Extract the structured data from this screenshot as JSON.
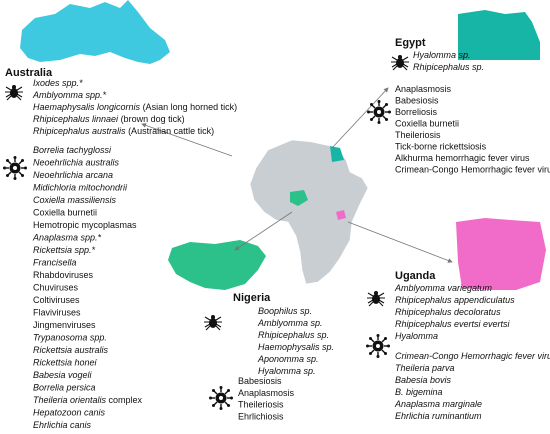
{
  "regions": [
    {
      "title": "Australia",
      "ticks": [
        [
          {
            "italic": "Ixodes spp.*"
          }
        ],
        [
          {
            "italic": "Amblyomma spp.*"
          }
        ],
        [
          {
            "italic": "Haemaphysalis longicornis"
          },
          {
            "regular": " (Asian long horned tick)"
          }
        ],
        [
          {
            "italic": "Rhipicephalus linnaei"
          },
          {
            "regular": " (brown dog tick)"
          }
        ],
        [
          {
            "italic": "Rhipicephalus australis"
          },
          {
            "regular": " (Australian cattle tick)"
          }
        ]
      ],
      "pathogens": [
        [
          {
            "italic": "Borrelia tachyglossi"
          }
        ],
        [
          {
            "italic": "Neoehrlichia australis"
          }
        ],
        [
          {
            "italic": "Neoehrlichia arcana"
          }
        ],
        [
          {
            "italic": "Midichloria mitochondrii"
          }
        ],
        [
          {
            "italic": "Coxiella massiliensis"
          }
        ],
        [
          {
            "regular": "Coxiella burnetii"
          }
        ],
        [
          {
            "regular": "Hemotropic mycoplasmas"
          }
        ],
        [
          {
            "italic": "Anaplasma spp.*"
          }
        ],
        [
          {
            "italic": "Rickettsia spp.*"
          }
        ],
        [
          {
            "italic": "Francisella"
          }
        ],
        [
          {
            "regular": "Rhabdoviruses"
          }
        ],
        [
          {
            "regular": "Chuviruses"
          }
        ],
        [
          {
            "regular": "Coltiviruses"
          }
        ],
        [
          {
            "regular": "Flaviviruses"
          }
        ],
        [
          {
            "regular": "Jingmenviruses"
          }
        ],
        [
          {
            "italic": "Trypanosoma spp."
          }
        ],
        [
          {
            "italic": "Rickettsia australis"
          }
        ],
        [
          {
            "italic": "Rickettsia honei"
          }
        ],
        [
          {
            "italic": "Babesia vogeli"
          }
        ],
        [
          {
            "italic": "Borrelia persica"
          }
        ],
        [
          {
            "italic": "Theileria orientalis"
          },
          {
            "regular": " complex"
          }
        ],
        [
          {
            "italic": "Hepatozoon canis"
          }
        ],
        [
          {
            "italic": "Ehrlichia canis"
          }
        ]
      ]
    },
    {
      "title": "Egypt",
      "ticks": [
        [
          {
            "italic": "Hyalomma sp."
          }
        ],
        [
          {
            "italic": "Rhipicephalus sp."
          }
        ]
      ],
      "pathogens": [
        [
          {
            "regular": "Anaplasmosis"
          }
        ],
        [
          {
            "regular": "Babesiosis"
          }
        ],
        [
          {
            "regular": "Borreliosis"
          }
        ],
        [
          {
            "regular": "Coxiella burnetii"
          }
        ],
        [
          {
            "regular": "Theileriosis"
          }
        ],
        [
          {
            "regular": "Tick-borne rickettsiosis"
          }
        ],
        [
          {
            "regular": "Alkhurma hemorrhagic fever virus"
          }
        ],
        [
          {
            "regular": "Crimean-Congo Hemorrhagic fever virus"
          }
        ]
      ]
    },
    {
      "title": "Nigeria",
      "ticks": [
        [
          {
            "italic": "Boophilus sp."
          }
        ],
        [
          {
            "italic": "Amblyomma sp."
          }
        ],
        [
          {
            "italic": "Rhipicephalus sp."
          }
        ],
        [
          {
            "italic": "Haemophysalis sp."
          }
        ],
        [
          {
            "italic": "Aponomma sp."
          }
        ],
        [
          {
            "italic": "Hyalomma sp."
          }
        ]
      ],
      "pathogens": [
        [
          {
            "regular": "Babesiosis"
          }
        ],
        [
          {
            "regular": "Anaplasmosis"
          }
        ],
        [
          {
            "regular": "Theileriosis"
          }
        ],
        [
          {
            "regular": "Ehrlichiosis"
          }
        ]
      ]
    },
    {
      "title": "Uganda",
      "ticks": [
        [
          {
            "italic": "Amblyomma variegatum"
          }
        ],
        [
          {
            "italic": "Rhipicephalus appendiculatus"
          }
        ],
        [
          {
            "italic": "Rhipicephalus decoloratus"
          }
        ],
        [
          {
            "italic": "Rhipicephalus evertsi evertsi"
          }
        ],
        [
          {
            "italic": "Hyalomma"
          }
        ]
      ],
      "pathogens": [
        [
          {
            "italic": "Crimean-Congo Hemorrhagic fever virus"
          }
        ],
        [
          {
            "italic": "Theileria parva"
          }
        ],
        [
          {
            "italic": "Babesia bovis"
          }
        ],
        [
          {
            "italic": "B. bigemina"
          }
        ],
        [
          {
            "italic": "Anaplasma marginale"
          }
        ],
        [
          {
            "italic": "Ehrlichia ruminantium"
          }
        ]
      ]
    }
  ]
}
